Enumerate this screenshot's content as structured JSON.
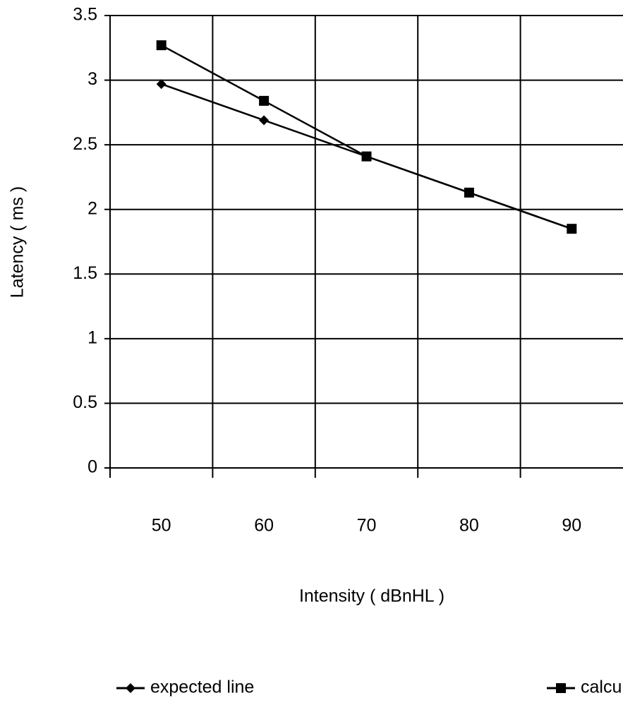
{
  "chart_data": {
    "type": "line",
    "x_label": "Intensity ( dBnHL )",
    "y_label": "Latency ( ms )",
    "categories": [
      "50",
      "60",
      "70",
      "80",
      "90"
    ],
    "series": [
      {
        "name": "expected line",
        "color": "#000000",
        "marker": "diamond",
        "values": [
          2.97,
          2.69,
          2.41,
          2.13,
          1.85
        ]
      },
      {
        "name": "calculaed line",
        "color": "#000000",
        "marker": "square",
        "values": [
          3.27,
          2.84,
          2.41,
          2.13,
          1.85
        ]
      }
    ],
    "ylim": [
      0,
      3.5
    ],
    "yticks": [
      0,
      0.5,
      1,
      1.5,
      2,
      2.5,
      3,
      3.5
    ],
    "grid": true,
    "legend": "bottom"
  }
}
